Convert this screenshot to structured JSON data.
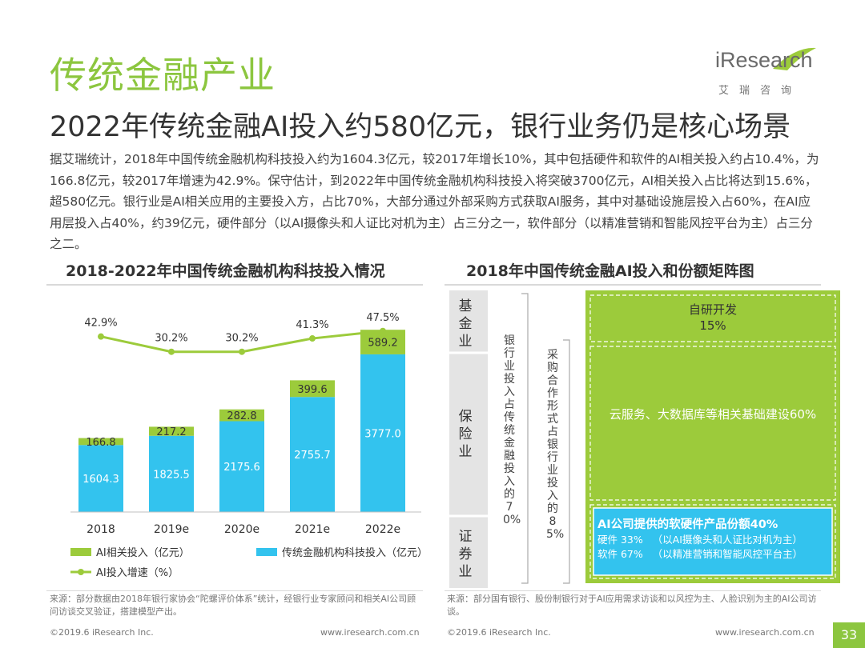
{
  "header": {
    "section_title": "传统金融产业",
    "headline": "2022年传统金融AI投入约580亿元，银行业务仍是核心场景",
    "logo_text": "iResearch",
    "logo_subtitle": "艾瑞咨询"
  },
  "body_text": "据艾瑞统计，2018年中国传统金融机构科技投入约为1604.3亿元，较2017年增长10%，其中包括硬件和软件的AI相关投入约占10.4%，为166.8亿元，较2017年增速为42.9%。保守估计，到2022年中国传统金融机构科技投入将突破3700亿元，AI相关投入占比将达到15.6%，超580亿元。银行业是AI相关应用的主要投入方，占比70%，大部分通过外部采购方式获取AI服务，其中对基础设施层投入占60%，在AI应用层投入占40%，约39亿元，硬件部分（以AI摄像头和人证比对机为主）占三分之一，软件部分（以精准营销和智能风控平台为主）占三分之二。",
  "left_chart": {
    "title": "2018-2022年中国传统金融机构科技投入情况",
    "source": "来源：部分数据由2018年银行家协会“陀螺评价体系”统计，经银行业专家顾问和相关AI公司顾问访谈交叉验证，搭建模型产出。"
  },
  "right_chart": {
    "title": "2018年中国传统金融AI投入和份额矩阵图",
    "source": "来源：部分国有银行、股份制银行对于AI应用需求访谈和以风控为主、人脸识别为主的AI公司访谈。",
    "left_labels": [
      "基金业",
      "保险业",
      "证券业"
    ],
    "bank_note": "银行业投入占传统金融投入的70%",
    "purchase_note": "采购合作形式占银行业投入的85%",
    "self_dev_name": "自研开发",
    "self_dev_pct": "15%",
    "cloud_text": "云服务、大数据库等相关基础建设60%",
    "ai_title": "AI公司提供的软硬件产品份额40%",
    "ai_line1": "硬件 33%   （以AI摄像头和人证比对机为主）",
    "ai_line2": "软件 67%   （以精准营销和智能风控平台主）"
  },
  "chart_data": {
    "type": "bar",
    "stacked": true,
    "categories": [
      "2018",
      "2019e",
      "2020e",
      "2021e",
      "2022e"
    ],
    "series": [
      {
        "name": "传统金融机构科技投入（亿元）",
        "values": [
          1604.3,
          1825.5,
          2175.6,
          2755.7,
          3777.0
        ],
        "labels": [
          "1604.3",
          "1825.5",
          "2175.6",
          "2755.7",
          "3777.0"
        ],
        "color": "#33c3ee"
      },
      {
        "name": "AI相关投入（亿元）",
        "values": [
          166.8,
          217.2,
          282.8,
          399.6,
          589.2
        ],
        "labels": [
          "166.8",
          "217.2",
          "282.8",
          "399.6",
          "589.2"
        ],
        "color": "#9ccb3b"
      }
    ],
    "line_series": {
      "name": "AI投入增速（%）",
      "values": [
        42.9,
        30.2,
        30.2,
        41.3,
        47.5
      ],
      "labels": [
        "42.9%",
        "30.2%",
        "30.2%",
        "41.3%",
        "47.5%"
      ],
      "color": "#9ccb3b"
    },
    "legend": [
      "AI相关投入（亿元）",
      "传统金融机构科技投入（亿元）",
      "AI投入增速（%）"
    ],
    "legend_position": "bottom",
    "grid": false
  },
  "footer": {
    "left_copyright": "©2019.6 iResearch Inc.",
    "left_url": "www.iresearch.com.cn",
    "right_copyright": "©2019.6 iResearch Inc.",
    "right_url": "www.iresearch.com.cn",
    "page_number": "33"
  }
}
